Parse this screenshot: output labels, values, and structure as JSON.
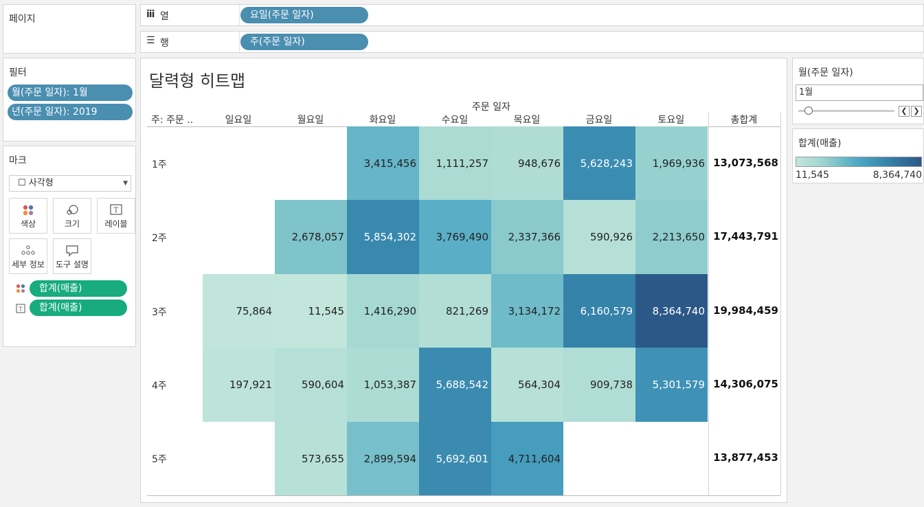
{
  "shelves": {
    "pages_title": "페이지",
    "columns_label": "열",
    "columns_pill": "요일(주문 일자)",
    "rows_label": "행",
    "rows_pill": "주(주문 일자)"
  },
  "filters": {
    "title": "필터",
    "items": [
      "월(주문 일자): 1월",
      "년(주문 일자): 2019"
    ]
  },
  "marks": {
    "title": "마크",
    "type": "사각형",
    "buttons": {
      "color": "색상",
      "size": "크기",
      "label": "레이블",
      "detail": "세부 정보",
      "tooltip": "도구 설명"
    },
    "fields": [
      "합계(매출)",
      "합계(매출)"
    ]
  },
  "view": {
    "title": "달력형 히트맵",
    "column_group": "주문 일자",
    "row_header": "주: 주문 ..",
    "days": [
      "일요일",
      "월요일",
      "화요일",
      "수요일",
      "목요일",
      "금요일",
      "토요일"
    ],
    "total_header": "총합계",
    "weeks": [
      "1주",
      "2주",
      "3주",
      "4주",
      "5주"
    ]
  },
  "chart_data": {
    "type": "heatmap",
    "title": "달력형 히트맵",
    "x": [
      "일요일",
      "월요일",
      "화요일",
      "수요일",
      "목요일",
      "금요일",
      "토요일"
    ],
    "y": [
      "1주",
      "2주",
      "3주",
      "4주",
      "5주"
    ],
    "values": [
      [
        null,
        null,
        3415456,
        1111257,
        948676,
        5628243,
        1969936
      ],
      [
        null,
        2678057,
        5854302,
        3769490,
        2337366,
        590926,
        2213650
      ],
      [
        75864,
        11545,
        1416290,
        821269,
        3134172,
        6160579,
        8364740
      ],
      [
        197921,
        590604,
        1053387,
        5688542,
        564304,
        909738,
        5301579
      ],
      [
        null,
        573655,
        2899594,
        5692601,
        4711604,
        null,
        null
      ]
    ],
    "labels": [
      [
        null,
        null,
        "3,415,456",
        "1,111,257",
        "948,676",
        "5,628,243",
        "1,969,936"
      ],
      [
        null,
        "2,678,057",
        "5,854,302",
        "3,769,490",
        "2,337,366",
        "590,926",
        "2,213,650"
      ],
      [
        "75,864",
        "11,545",
        "1,416,290",
        "821,269",
        "3,134,172",
        "6,160,579",
        "8,364,740"
      ],
      [
        "197,921",
        "590,604",
        "1,053,387",
        "5,688,542",
        "564,304",
        "909,738",
        "5,301,579"
      ],
      [
        null,
        "573,655",
        "2,899,594",
        "5,692,601",
        "4,711,604",
        null,
        null
      ]
    ],
    "totals": [
      "13,073,568",
      "17,443,791",
      "19,984,459",
      "14,306,075",
      "13,877,453"
    ],
    "color_range": [
      11545,
      8364740
    ],
    "color_low": "#c2e6db",
    "color_high": "#2c5887"
  },
  "month_filter": {
    "title": "월(주문 일자)",
    "value": "1월"
  },
  "legend": {
    "title": "합계(매출)",
    "min_label": "11,545",
    "max_label": "8,364,740"
  }
}
